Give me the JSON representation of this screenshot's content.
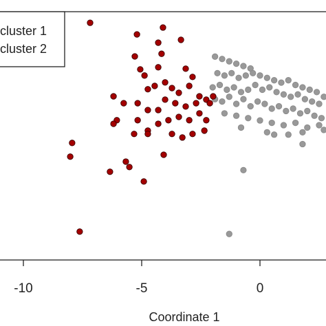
{
  "chart_data": {
    "type": "scatter",
    "xlabel": "Coordinate 1",
    "xlim": [
      -11,
      2.8
    ],
    "ylim": [
      -6,
      4.5
    ],
    "xticks": [
      -10,
      -5,
      0
    ],
    "legend": "top-left",
    "series": [
      {
        "name": "cluster 1",
        "color": "#a40000",
        "x": [
          -7.18,
          -5.2,
          -4.1,
          -3.34,
          -4.3,
          -4.16,
          -5.29,
          -5.06,
          -4.3,
          -3.14,
          -2.85,
          -4.74,
          -4.45,
          -4.01,
          -3.72,
          -3.43,
          -2.99,
          -2.56,
          -2.27,
          -1.98,
          -2.12,
          -2.7,
          -3.14,
          -3.58,
          -4.01,
          -4.3,
          -4.74,
          -5.17,
          -5.76,
          -6.19,
          -6.05,
          -5.17,
          -4.74,
          -4.3,
          -3.87,
          -3.43,
          -2.99,
          -2.56,
          -2.27,
          -3.72,
          -3.28,
          -2.85,
          -4.74,
          -5.32,
          -6.19,
          -7.94,
          -8.02,
          -4.07,
          -5.67,
          -5.52,
          -6.34,
          -4.91,
          -7.62,
          -2.35,
          -4.88
        ],
        "y": [
          4.03,
          3.54,
          3.83,
          3.31,
          3.19,
          2.72,
          2.61,
          2.06,
          2.15,
          2.09,
          1.74,
          1.22,
          1.36,
          1.51,
          1.27,
          1.07,
          1.36,
          0.92,
          0.78,
          0.92,
          0.63,
          0.63,
          0.49,
          0.63,
          0.78,
          0.34,
          0.34,
          0.63,
          0.63,
          0.92,
          -0.09,
          -0.09,
          -0.53,
          -0.24,
          -0.09,
          0.05,
          -0.09,
          0.2,
          -0.09,
          -0.67,
          -0.82,
          -0.67,
          -0.67,
          -0.67,
          -0.24,
          -1.05,
          -1.63,
          -1.55,
          -1.84,
          -2.07,
          -2.27,
          -2.68,
          -4.8,
          -0.53,
          1.8
        ]
      },
      {
        "name": "cluster 2",
        "color": "#999999",
        "x": [
          -1.9,
          -1.6,
          -1.3,
          -1.0,
          -0.7,
          -0.4,
          -1.8,
          -1.5,
          -1.2,
          -0.9,
          -0.6,
          -0.3,
          0,
          0.3,
          0.6,
          0.9,
          1.2,
          1.5,
          1.8,
          2.1,
          2.4,
          -2.0,
          -1.7,
          -1.4,
          -1.1,
          -0.8,
          -0.5,
          -0.2,
          0.1,
          0.4,
          0.7,
          1.0,
          1.3,
          1.6,
          1.9,
          2.2,
          2.5,
          -1.9,
          -1.6,
          -1.3,
          -1.0,
          -0.7,
          -0.4,
          -0.1,
          0.2,
          0.5,
          0.8,
          1.1,
          1.4,
          1.7,
          2.0,
          2.3,
          2.6,
          -1.5,
          -1.0,
          -0.5,
          0,
          0.5,
          1.0,
          1.5,
          2.0,
          2.5,
          -0.8,
          0.3,
          1.2,
          1.8,
          -0.7,
          -1.3,
          1.8,
          0.6,
          2.7,
          2.7
        ],
        "y": [
          2.6,
          2.5,
          2.4,
          2.3,
          2.2,
          2.1,
          1.9,
          1.8,
          1.9,
          1.7,
          1.8,
          1.9,
          1.8,
          1.7,
          1.6,
          1.5,
          1.6,
          1.4,
          1.3,
          1.2,
          1.1,
          1.3,
          1.4,
          1.2,
          1.3,
          1.1,
          1.2,
          1.4,
          1.2,
          1.3,
          1.1,
          1.0,
          0.9,
          1.0,
          0.8,
          0.7,
          0.6,
          0.8,
          0.7,
          0.9,
          0.6,
          0.8,
          0.5,
          0.7,
          0.6,
          0.4,
          0.5,
          0.3,
          0.4,
          0.2,
          0.3,
          0.1,
          0.0,
          0.2,
          0.1,
          0.0,
          -0.1,
          -0.2,
          -0.3,
          -0.2,
          -0.4,
          -0.3,
          -0.4,
          -0.6,
          -0.7,
          -0.6,
          -2.2,
          -4.9,
          -1.1,
          -0.7,
          0.9,
          -0.5
        ]
      }
    ]
  }
}
